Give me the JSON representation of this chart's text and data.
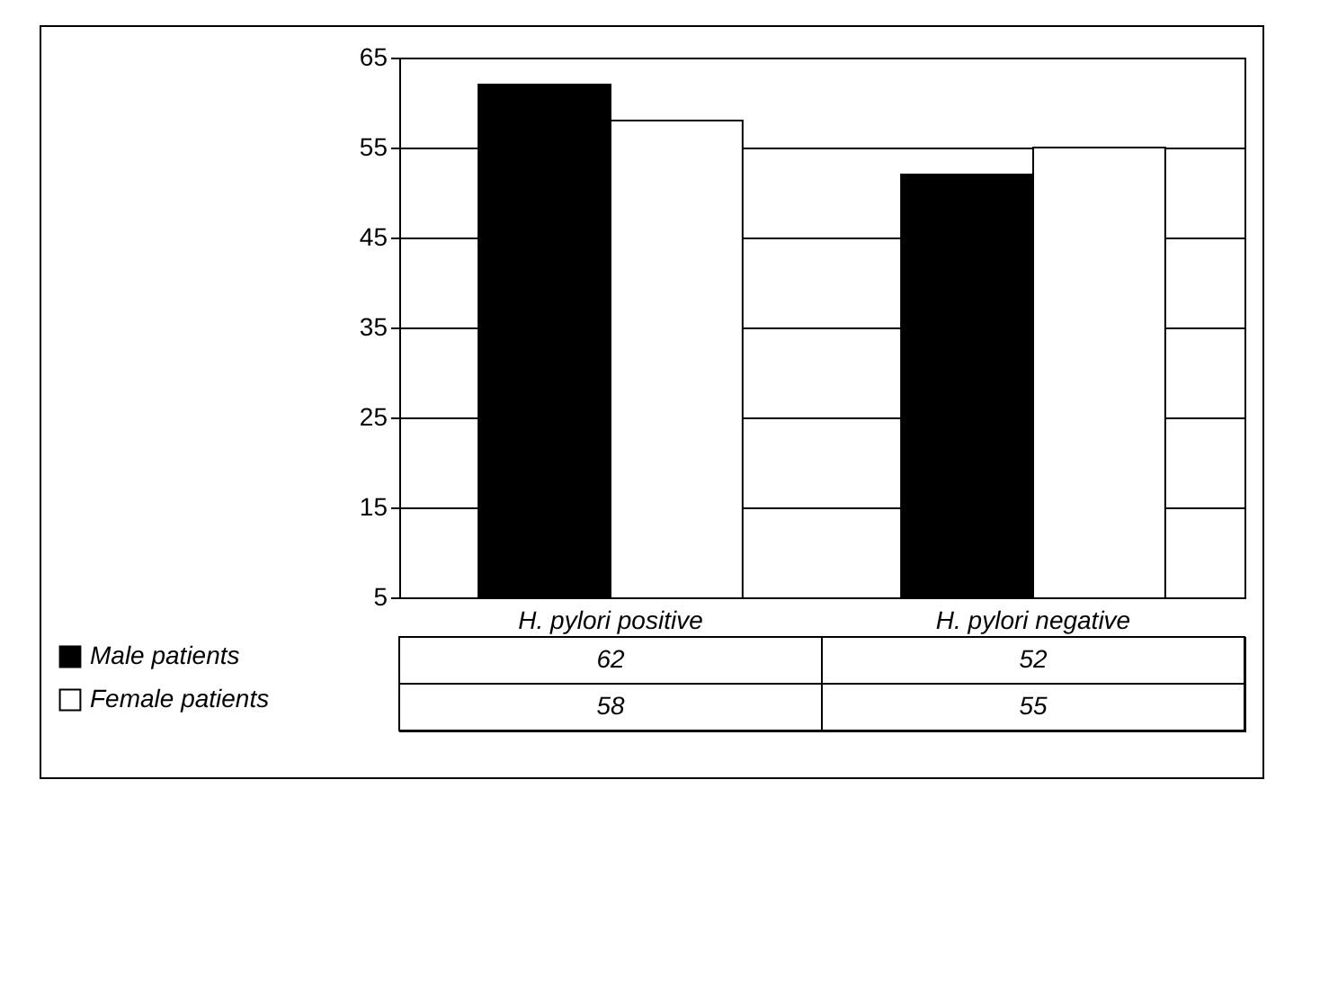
{
  "chart_data": {
    "type": "bar",
    "categories": [
      "H. pylori positive",
      "H. pylori negative"
    ],
    "series": [
      {
        "name": "Male patients",
        "color": "#000000",
        "values": [
          62,
          52
        ]
      },
      {
        "name": "Female patients",
        "color": "#ffffff",
        "values": [
          58,
          55
        ]
      }
    ],
    "ylim": [
      5,
      65
    ],
    "yticks": [
      5,
      15,
      25,
      35,
      45,
      55,
      65
    ],
    "grid": "y",
    "legend": "bottom left",
    "data_labels": true
  }
}
